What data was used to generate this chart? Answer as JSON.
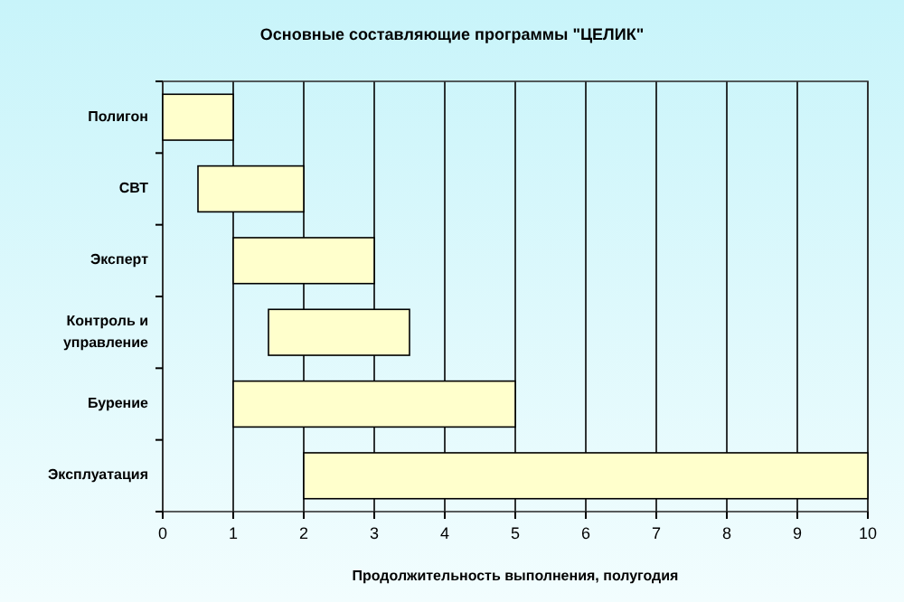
{
  "chart_data": {
    "type": "bar",
    "orientation": "horizontal",
    "title": "Основные составляющие программы \"ЦЕЛИК\"",
    "xlabel": "Продолжительность выполнения, полугодия",
    "categories": [
      "Полигон",
      "СВТ",
      "Эксперт",
      "Контроль и управление",
      "Бурение",
      "Эксплуатация"
    ],
    "base": [
      0,
      0.5,
      1,
      1.5,
      1,
      2
    ],
    "values": [
      1,
      1.5,
      2,
      2,
      4,
      8
    ],
    "color": "#ffffcc",
    "xlim": [
      0,
      10
    ],
    "xticks": [
      0,
      1,
      2,
      3,
      4,
      5,
      6,
      7,
      8,
      9,
      10
    ],
    "grid": "x"
  }
}
